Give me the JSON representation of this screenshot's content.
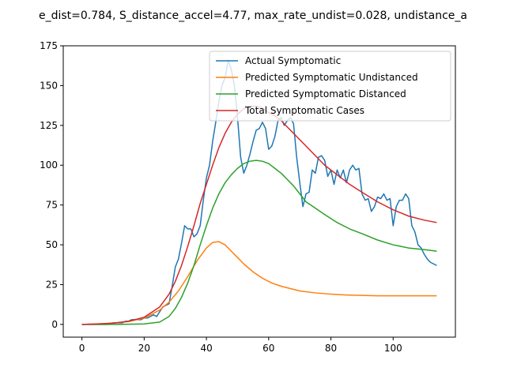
{
  "chart_data": {
    "type": "line",
    "title": "e_dist=0.784, S_distance_accel=4.77, max_rate_undist=0.028, undistance_a",
    "xlabel": "",
    "ylabel": "",
    "xlim": [
      -6,
      120
    ],
    "ylim": [
      -8,
      175
    ],
    "x_ticks": [
      0,
      20,
      40,
      60,
      80,
      100
    ],
    "y_ticks": [
      0,
      25,
      50,
      75,
      100,
      125,
      150,
      175
    ],
    "grid": false,
    "legend_position": "upper-right",
    "series": [
      {
        "name": "Actual Symptomatic",
        "color": "#1f77b4",
        "x": [
          0,
          2,
          4,
          6,
          8,
          10,
          12,
          13,
          14,
          15,
          16,
          17,
          18,
          19,
          20,
          21,
          22,
          23,
          24,
          25,
          26,
          27,
          28,
          29,
          30,
          31,
          32,
          33,
          34,
          35,
          36,
          37,
          38,
          39,
          40,
          41,
          42,
          43,
          44,
          45,
          46,
          47,
          48,
          49,
          50,
          51,
          52,
          53,
          54,
          55,
          56,
          57,
          58,
          59,
          60,
          61,
          62,
          63,
          64,
          65,
          66,
          67,
          68,
          69,
          70,
          71,
          72,
          73,
          74,
          75,
          76,
          77,
          78,
          79,
          80,
          81,
          82,
          83,
          84,
          85,
          86,
          87,
          88,
          89,
          90,
          91,
          92,
          93,
          94,
          95,
          96,
          97,
          98,
          99,
          100,
          101,
          102,
          103,
          104,
          105,
          106,
          107,
          108,
          109,
          110,
          111,
          112,
          113,
          114
        ],
        "y": [
          0,
          0,
          0,
          0,
          0,
          1,
          1,
          1,
          2,
          2,
          3,
          3,
          3,
          3,
          4,
          4,
          5,
          6,
          5,
          8,
          11,
          12,
          13,
          24,
          36,
          41,
          51,
          62,
          60,
          60,
          55,
          57,
          62,
          78,
          92,
          100,
          115,
          127,
          140,
          150,
          155,
          166,
          160,
          150,
          130,
          105,
          95,
          100,
          107,
          115,
          122,
          123,
          127,
          123,
          110,
          112,
          118,
          128,
          130,
          125,
          128,
          130,
          126,
          105,
          89,
          74,
          82,
          83,
          97,
          95,
          105,
          106,
          103,
          93,
          97,
          88,
          97,
          92,
          97,
          89,
          97,
          100,
          97,
          98,
          82,
          78,
          79,
          71,
          74,
          80,
          79,
          82,
          78,
          79,
          62,
          74,
          78,
          78,
          82,
          79,
          62,
          58,
          50,
          48,
          44,
          41,
          39,
          38,
          37
        ]
      },
      {
        "name": "Predicted Symptomatic Undistanced",
        "color": "#ff7f0e",
        "x": [
          0,
          5,
          10,
          15,
          20,
          25,
          28,
          31,
          34,
          37,
          40,
          42,
          44,
          46,
          48,
          50,
          52,
          55,
          58,
          61,
          64,
          67,
          70,
          75,
          80,
          85,
          90,
          95,
          100,
          105,
          110,
          114
        ],
        "y": [
          0,
          0.3,
          0.8,
          1.8,
          4,
          9,
          14,
          21,
          30,
          40,
          48,
          51.5,
          52,
          50,
          46,
          42,
          38,
          33,
          29,
          26,
          24,
          22.5,
          21,
          19.8,
          19,
          18.5,
          18.2,
          18,
          18,
          18,
          18,
          18
        ]
      },
      {
        "name": "Predicted Symptomatic Distanced",
        "color": "#2ca02c",
        "x": [
          0,
          5,
          10,
          15,
          20,
          25,
          28,
          30,
          32,
          34,
          36,
          38,
          40,
          42,
          44,
          46,
          48,
          50,
          52,
          54,
          56,
          58,
          60,
          62,
          64,
          66,
          68,
          70,
          72,
          75,
          78,
          82,
          86,
          90,
          95,
          100,
          105,
          110,
          114
        ],
        "y": [
          0,
          0,
          0,
          0.1,
          0.3,
          1.5,
          5,
          10,
          17,
          26,
          37,
          50,
          62,
          73,
          82,
          89,
          94,
          98,
          101,
          102.5,
          103,
          102.5,
          101,
          98,
          95,
          91,
          87,
          82,
          77,
          73,
          69,
          64,
          60,
          57,
          53,
          50,
          48,
          47,
          46
        ]
      },
      {
        "name": "Total Symptomatic Cases",
        "color": "#d62728",
        "x": [
          0,
          5,
          10,
          15,
          20,
          25,
          28,
          30,
          32,
          34,
          36,
          38,
          40,
          42,
          44,
          46,
          48,
          50,
          52,
          54,
          56,
          58,
          60,
          62,
          64,
          66,
          68,
          70,
          72,
          75,
          78,
          82,
          86,
          90,
          95,
          100,
          105,
          110,
          114
        ],
        "y": [
          0,
          0.3,
          0.8,
          2,
          4.5,
          11,
          19,
          27,
          37,
          49,
          62,
          76,
          88,
          100,
          111,
          120,
          127,
          132,
          135.5,
          137,
          137,
          136,
          133,
          131,
          128,
          124,
          120,
          116,
          112,
          106,
          100,
          94,
          88,
          83,
          77,
          72,
          68,
          65.5,
          64
        ]
      }
    ]
  }
}
